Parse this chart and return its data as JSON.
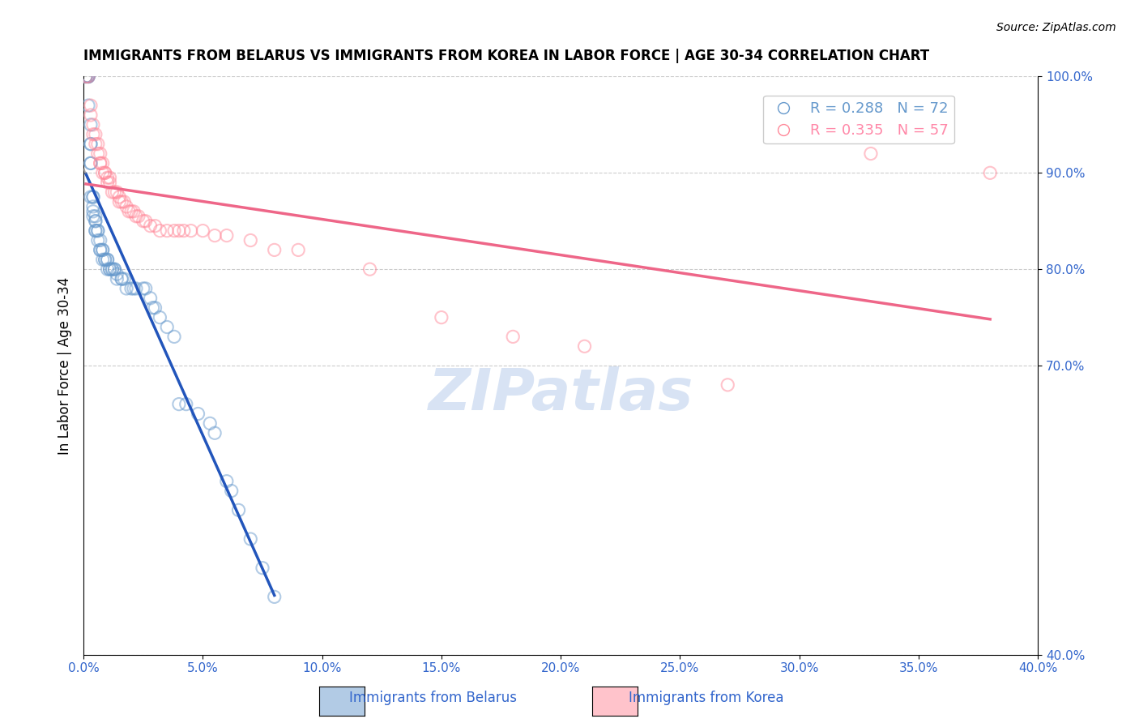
{
  "title": "IMMIGRANTS FROM BELARUS VS IMMIGRANTS FROM KOREA IN LABOR FORCE | AGE 30-34 CORRELATION CHART",
  "source": "Source: ZipAtlas.com",
  "xlabel_bottom": "",
  "ylabel_left": "In Labor Force | Age 30-34",
  "xlim": [
    0.0,
    0.4
  ],
  "ylim": [
    0.4,
    1.0
  ],
  "xticks": [
    0.0,
    0.05,
    0.1,
    0.15,
    0.2,
    0.25,
    0.3,
    0.35,
    0.4
  ],
  "yticks_right": [
    1.0,
    0.9,
    0.8,
    0.7,
    0.4
  ],
  "legend_entries": [
    {
      "label": "R = 0.288   N = 72",
      "color": "#6699CC"
    },
    {
      "label": "R = 0.335   N = 57",
      "color": "#FF88A8"
    }
  ],
  "belarus_color": "#6699CC",
  "korea_color": "#FF8899",
  "belarus_trendline_color": "#2255BB",
  "korea_trendline_color": "#EE6688",
  "watermark": "ZIPatlas",
  "watermark_color": "#C8D8F0",
  "belarus_x": [
    0.001,
    0.001,
    0.001,
    0.002,
    0.002,
    0.002,
    0.002,
    0.002,
    0.003,
    0.003,
    0.003,
    0.003,
    0.003,
    0.003,
    0.004,
    0.004,
    0.004,
    0.004,
    0.004,
    0.005,
    0.005,
    0.005,
    0.005,
    0.005,
    0.006,
    0.006,
    0.006,
    0.007,
    0.007,
    0.007,
    0.008,
    0.008,
    0.008,
    0.009,
    0.009,
    0.01,
    0.01,
    0.01,
    0.011,
    0.011,
    0.012,
    0.012,
    0.013,
    0.013,
    0.014,
    0.014,
    0.016,
    0.016,
    0.017,
    0.018,
    0.02,
    0.021,
    0.022,
    0.025,
    0.026,
    0.028,
    0.029,
    0.03,
    0.032,
    0.035,
    0.038,
    0.04,
    0.043,
    0.048,
    0.053,
    0.055,
    0.06,
    0.062,
    0.065,
    0.07,
    0.075,
    0.08
  ],
  "belarus_y": [
    1.0,
    1.0,
    1.0,
    1.0,
    1.0,
    1.0,
    1.0,
    0.97,
    0.95,
    0.93,
    0.93,
    0.91,
    0.91,
    0.875,
    0.875,
    0.875,
    0.865,
    0.86,
    0.855,
    0.855,
    0.85,
    0.85,
    0.84,
    0.84,
    0.84,
    0.84,
    0.83,
    0.83,
    0.82,
    0.82,
    0.82,
    0.82,
    0.81,
    0.81,
    0.81,
    0.81,
    0.81,
    0.8,
    0.8,
    0.8,
    0.8,
    0.8,
    0.8,
    0.8,
    0.795,
    0.79,
    0.79,
    0.79,
    0.79,
    0.78,
    0.78,
    0.78,
    0.78,
    0.78,
    0.78,
    0.77,
    0.76,
    0.76,
    0.75,
    0.74,
    0.73,
    0.66,
    0.66,
    0.65,
    0.64,
    0.63,
    0.58,
    0.57,
    0.55,
    0.52,
    0.49,
    0.46
  ],
  "korea_x": [
    0.001,
    0.002,
    0.003,
    0.003,
    0.004,
    0.004,
    0.005,
    0.005,
    0.006,
    0.006,
    0.007,
    0.007,
    0.007,
    0.008,
    0.008,
    0.009,
    0.009,
    0.01,
    0.01,
    0.011,
    0.011,
    0.012,
    0.013,
    0.014,
    0.015,
    0.015,
    0.016,
    0.017,
    0.018,
    0.019,
    0.02,
    0.021,
    0.022,
    0.023,
    0.025,
    0.026,
    0.028,
    0.03,
    0.032,
    0.035,
    0.038,
    0.04,
    0.042,
    0.045,
    0.05,
    0.055,
    0.06,
    0.07,
    0.08,
    0.09,
    0.12,
    0.15,
    0.18,
    0.21,
    0.27,
    0.33,
    0.38
  ],
  "korea_y": [
    1.0,
    1.0,
    0.97,
    0.96,
    0.95,
    0.94,
    0.94,
    0.93,
    0.93,
    0.92,
    0.92,
    0.91,
    0.91,
    0.91,
    0.9,
    0.9,
    0.9,
    0.895,
    0.89,
    0.89,
    0.895,
    0.88,
    0.88,
    0.88,
    0.875,
    0.87,
    0.87,
    0.87,
    0.865,
    0.86,
    0.86,
    0.86,
    0.855,
    0.855,
    0.85,
    0.85,
    0.845,
    0.845,
    0.84,
    0.84,
    0.84,
    0.84,
    0.84,
    0.84,
    0.84,
    0.835,
    0.835,
    0.83,
    0.82,
    0.82,
    0.8,
    0.75,
    0.73,
    0.72,
    0.68,
    0.92,
    0.9
  ]
}
